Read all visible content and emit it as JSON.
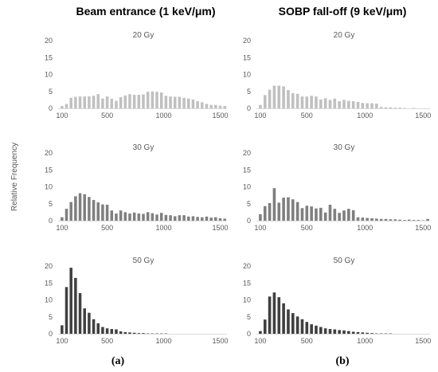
{
  "column_titles": [
    "Beam entrance (1 keV/μm)",
    "SOBP fall-off (9 keV/μm)"
  ],
  "ylabel": "Relative Frequency",
  "sublabels": [
    "(a)",
    "(b)"
  ],
  "colors": {
    "20 Gy": "#c0c0c0",
    "30 Gy": "#7f7f7f",
    "50 Gy": "#404040",
    "axis": "#d9d9d9",
    "text": "#595959"
  },
  "chart_data": [
    {
      "type": "bar",
      "column": 0,
      "row": 0,
      "title": "20 Gy",
      "x": [
        100,
        140,
        180,
        220,
        260,
        300,
        340,
        380,
        420,
        460,
        500,
        540,
        580,
        620,
        660,
        700,
        740,
        780,
        820,
        860,
        900,
        940,
        980,
        1020,
        1060,
        1100,
        1140,
        1180,
        1220,
        1260,
        1300,
        1340,
        1380,
        1420,
        1460,
        1500,
        1540
      ],
      "values": [
        0.7,
        1.3,
        3.1,
        3.4,
        3.5,
        3.5,
        3.5,
        3.7,
        4.2,
        2.9,
        3.5,
        2.8,
        2.2,
        3.3,
        3.8,
        4.2,
        4.0,
        4.0,
        4.1,
        4.9,
        5.0,
        4.9,
        4.7,
        3.7,
        3.5,
        3.4,
        3.4,
        3.1,
        2.9,
        2.6,
        2.1,
        1.8,
        1.3,
        1.0,
        1.0,
        0.8,
        0.7
      ],
      "yticks": [
        0,
        5,
        10,
        15,
        20
      ],
      "ylim": [
        0,
        20
      ],
      "xticks": [
        100,
        500,
        1000,
        1500
      ],
      "xlim": [
        80,
        1560
      ]
    },
    {
      "type": "bar",
      "column": 1,
      "row": 0,
      "title": "20 Gy",
      "x": [
        100,
        140,
        180,
        220,
        260,
        300,
        340,
        380,
        420,
        460,
        500,
        540,
        580,
        620,
        660,
        700,
        740,
        780,
        820,
        860,
        900,
        940,
        980,
        1020,
        1060,
        1100,
        1140,
        1180,
        1220,
        1260,
        1300,
        1340,
        1380,
        1420,
        1460,
        1500,
        1540
      ],
      "values": [
        1.0,
        3.9,
        5.5,
        6.7,
        6.7,
        6.5,
        5.4,
        4.5,
        4.3,
        3.5,
        3.5,
        3.7,
        3.5,
        2.6,
        3.0,
        2.5,
        2.9,
        2.1,
        2.5,
        2.2,
        2.1,
        1.9,
        1.6,
        1.5,
        1.5,
        1.4,
        0.4,
        0.3,
        0.3,
        0.2,
        0.2,
        0.1,
        0.0,
        0.1,
        0.0,
        0.0,
        0.0
      ],
      "yticks": [
        0,
        5,
        10,
        15,
        20
      ],
      "ylim": [
        0,
        20
      ],
      "xticks": [
        100,
        500,
        1000,
        1500
      ],
      "xlim": [
        80,
        1560
      ]
    },
    {
      "type": "bar",
      "column": 0,
      "row": 1,
      "title": "30 Gy",
      "x": [
        100,
        140,
        180,
        220,
        260,
        300,
        340,
        380,
        420,
        460,
        500,
        540,
        580,
        620,
        660,
        700,
        740,
        780,
        820,
        860,
        900,
        940,
        980,
        1020,
        1060,
        1100,
        1140,
        1180,
        1220,
        1260,
        1300,
        1340,
        1380,
        1420,
        1460,
        1500,
        1540
      ],
      "values": [
        1.0,
        3.5,
        5.5,
        7.2,
        8.1,
        7.8,
        7.0,
        6.1,
        5.4,
        4.8,
        4.7,
        3.0,
        2.1,
        3.0,
        2.5,
        2.1,
        2.4,
        2.1,
        2.0,
        2.5,
        2.2,
        1.8,
        2.3,
        1.7,
        1.6,
        1.3,
        1.6,
        1.6,
        1.2,
        1.3,
        1.1,
        1.0,
        1.2,
        0.9,
        1.0,
        0.7,
        0.6
      ],
      "yticks": [
        0,
        5,
        10,
        15,
        20
      ],
      "ylim": [
        0,
        20
      ],
      "xticks": [
        100,
        500,
        1000,
        1500
      ],
      "xlim": [
        80,
        1560
      ]
    },
    {
      "type": "bar",
      "column": 1,
      "row": 1,
      "title": "30 Gy",
      "x": [
        100,
        140,
        180,
        220,
        260,
        300,
        340,
        380,
        420,
        460,
        500,
        540,
        580,
        620,
        660,
        700,
        740,
        780,
        820,
        860,
        900,
        940,
        980,
        1020,
        1060,
        1100,
        1140,
        1180,
        1220,
        1260,
        1300,
        1340,
        1380,
        1420,
        1460,
        1500,
        1540
      ],
      "values": [
        1.9,
        4.3,
        5.2,
        9.6,
        5.3,
        6.8,
        6.9,
        6.3,
        5.5,
        3.7,
        4.4,
        4.2,
        3.6,
        3.8,
        2.4,
        4.7,
        3.5,
        2.3,
        3.0,
        3.5,
        3.1,
        1.0,
        0.9,
        0.8,
        0.7,
        0.6,
        0.5,
        0.5,
        0.4,
        0.4,
        0.3,
        0.2,
        0.3,
        0.2,
        0.2,
        0.1,
        0.5
      ],
      "yticks": [
        0,
        5,
        10,
        15,
        20
      ],
      "ylim": [
        0,
        20
      ],
      "xticks": [
        100,
        500,
        1000,
        1500
      ],
      "xlim": [
        80,
        1560
      ]
    },
    {
      "type": "bar",
      "column": 0,
      "row": 2,
      "title": "50 Gy",
      "x": [
        100,
        140,
        180,
        220,
        260,
        300,
        340,
        380,
        420,
        460,
        500,
        540,
        580,
        620,
        660,
        700,
        740,
        780,
        820,
        860,
        900,
        940,
        980,
        1020,
        1060,
        1100,
        1140,
        1180,
        1220,
        1260,
        1300,
        1340,
        1380,
        1420,
        1460,
        1500,
        1540
      ],
      "values": [
        2.5,
        13.8,
        19.5,
        16.5,
        12.0,
        7.5,
        6.2,
        4.3,
        3.1,
        2.0,
        1.6,
        1.4,
        1.3,
        0.7,
        0.5,
        0.4,
        0.3,
        0.2,
        0.2,
        0.1,
        0.1,
        0.1,
        0.1,
        0.1,
        0.0,
        0.0,
        0.0,
        0.0,
        0.0,
        0.0,
        0.0,
        0.0,
        0.0,
        0.0,
        0.0,
        0.0,
        0.0
      ],
      "yticks": [
        0,
        5,
        10,
        15,
        20
      ],
      "ylim": [
        0,
        20
      ],
      "xticks": [
        100,
        500,
        1000,
        1500
      ],
      "xlim": [
        80,
        1560
      ]
    },
    {
      "type": "bar",
      "column": 1,
      "row": 2,
      "title": "50 Gy",
      "x": [
        100,
        140,
        180,
        220,
        260,
        300,
        340,
        380,
        420,
        460,
        500,
        540,
        580,
        620,
        660,
        700,
        740,
        780,
        820,
        860,
        900,
        940,
        980,
        1020,
        1060,
        1100,
        1140,
        1180,
        1220,
        1260,
        1300,
        1340,
        1380,
        1420,
        1460,
        1500,
        1540
      ],
      "values": [
        0.8,
        4.2,
        11.0,
        12.2,
        10.8,
        9.0,
        7.2,
        6.1,
        5.1,
        4.3,
        3.5,
        2.8,
        2.4,
        2.0,
        1.6,
        1.4,
        1.3,
        1.1,
        1.0,
        0.8,
        0.6,
        0.5,
        0.4,
        0.3,
        0.2,
        0.1,
        0.1,
        0.1,
        0.1,
        0.0,
        0.0,
        0.0,
        0.0,
        0.0,
        0.0,
        0.0,
        0.0
      ],
      "yticks": [
        0,
        5,
        10,
        15,
        20
      ],
      "ylim": [
        0,
        20
      ],
      "xticks": [
        100,
        500,
        1000,
        1500
      ],
      "xlim": [
        80,
        1560
      ]
    }
  ]
}
